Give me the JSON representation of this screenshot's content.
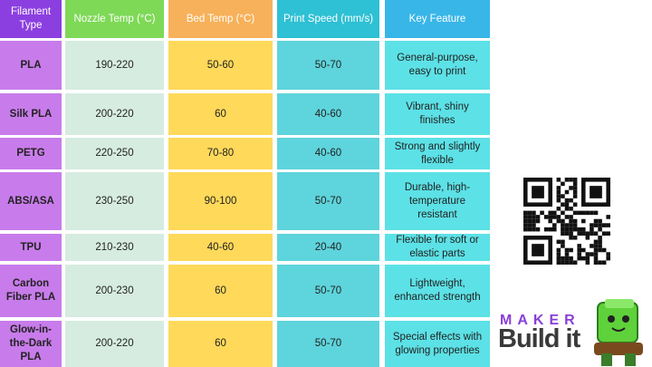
{
  "table": {
    "header": [
      "Filament Type",
      "Nozzle Temp (°C)",
      "Bed Temp (°C)",
      "Print Speed (mm/s)",
      "Key Feature"
    ],
    "rows": [
      [
        "PLA",
        "190-220",
        "50-60",
        "50-70",
        "General-purpose, easy to print"
      ],
      [
        "Silk PLA",
        "200-220",
        "60",
        "40-60",
        "Vibrant, shiny finishes"
      ],
      [
        "PETG",
        "220-250",
        "70-80",
        "40-60",
        "Strong and slightly flexible"
      ],
      [
        "ABS/ASA",
        "230-250",
        "90-100",
        "50-70",
        "Durable, high-temperature resistant"
      ],
      [
        "TPU",
        "210-230",
        "40-60",
        "20-40",
        "Flexible for soft or elastic parts"
      ],
      [
        "Carbon Fiber PLA",
        "200-230",
        "60",
        "50-70",
        "Lightweight, enhanced strength"
      ],
      [
        "Glow-in-the-Dark PLA",
        "200-220",
        "60",
        "50-70",
        "Special effects with glowing properties"
      ]
    ]
  },
  "logo": {
    "top": "MAKER",
    "bottom": "Build it"
  }
}
